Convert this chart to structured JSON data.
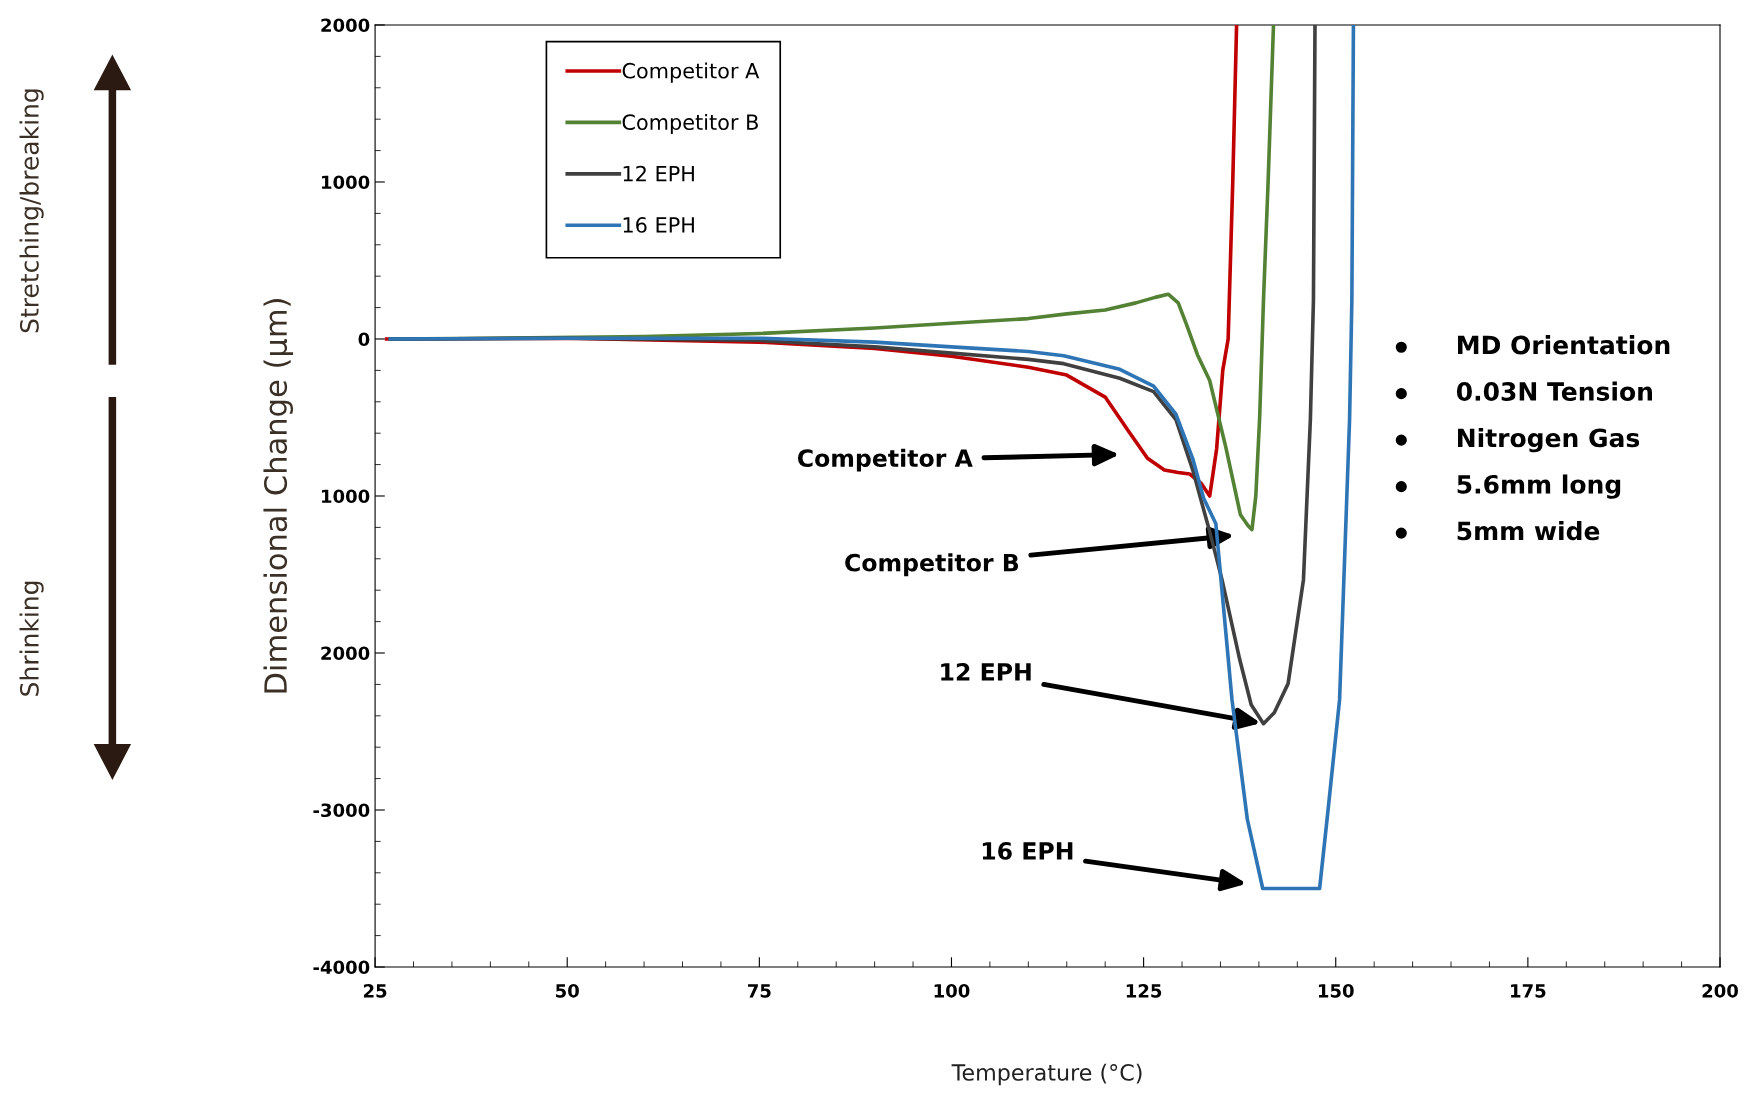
{
  "chart_data": {
    "type": "line",
    "xlabel": "Temperature (°C)",
    "ylabel": "Dimensional Change (µm)",
    "xlim": [
      25,
      200
    ],
    "xticks": [
      25,
      50,
      75,
      100,
      125,
      150,
      175,
      200
    ],
    "ylim": [
      -4000,
      2000
    ],
    "yticks": [
      -4000,
      -3000,
      {
        "value": -2000,
        "label": "2000"
      },
      {
        "value": -1000,
        "label": "1000"
      },
      0,
      1000,
      2000
    ],
    "grid": false,
    "legend": "top left",
    "line_style": "solid",
    "marker": "none",
    "series": [
      {
        "name": "Competitor A",
        "color": "#c00000",
        "x": [
          26.5,
          30,
          50,
          75,
          90,
          100,
          110,
          115,
          120,
          123,
          125.5,
          127.7,
          129.5,
          131,
          132.5,
          133.6,
          134.5,
          135.3,
          136,
          136.6,
          137.1
        ],
        "values": [
          0,
          0,
          5,
          -20,
          -60,
          -110,
          -180,
          -230,
          -370,
          -585,
          -760,
          -835,
          -850,
          -860,
          -920,
          -1000,
          -700,
          -200,
          0,
          1000,
          2000
        ]
      },
      {
        "name": "Competitor B",
        "color": "#548235",
        "x": [
          27,
          40,
          60,
          75,
          90,
          100,
          110,
          115,
          120,
          124,
          126.5,
          128.2,
          129.5,
          130.6,
          132,
          133.6,
          135.7,
          137.6,
          138.6,
          139.1,
          139.6,
          140.1,
          140.6,
          141.2,
          141.9
        ],
        "values": [
          0,
          5,
          15,
          35,
          70,
          100,
          130,
          160,
          185,
          230,
          265,
          285,
          230,
          90,
          -100,
          -265,
          -690,
          -1120,
          -1190,
          -1214,
          -1000,
          -500,
          250,
          1000,
          2000
        ]
      },
      {
        "name": "12 EPH",
        "color": "#404040",
        "x": [
          27,
          50,
          75,
          90,
          100,
          110,
          114.6,
          121.9,
          126.3,
          129.2,
          131.4,
          133.6,
          135.2,
          137.5,
          139,
          140.6,
          142,
          143.8,
          145.8,
          146.7,
          147.1,
          147.3
        ],
        "values": [
          0,
          5,
          -10,
          -50,
          -90,
          -130,
          -157,
          -250,
          -335,
          -513,
          -835,
          -1227,
          -1533,
          -2040,
          -2330,
          -2450,
          -2380,
          -2195,
          -1533,
          -513,
          250,
          2000
        ]
      },
      {
        "name": "16 EPH",
        "color": "#2e75b6",
        "x": [
          27,
          50,
          75,
          90,
          100,
          110,
          114.6,
          121.9,
          126.3,
          129.2,
          131.4,
          132.8,
          134.4,
          136.5,
          138.5,
          140.5,
          147.9,
          149,
          150.5,
          151.8,
          152.1,
          152.3
        ],
        "values": [
          0,
          5,
          5,
          -20,
          -50,
          -80,
          -107,
          -193,
          -300,
          -478,
          -763,
          -1013,
          -1177,
          -2297,
          -3060,
          -3500,
          -3500,
          -3000,
          -2297,
          -513,
          250,
          2000
        ]
      }
    ],
    "annotations": [
      "Competitor A",
      "Competitor B",
      {
        "text": "12 EPH",
        "x": 140.6,
        "y": -2450
      },
      "16 EPH",
      "MD Orientation",
      "0.03N Tension",
      "Nitrogen Gas",
      "5.6mm long",
      "5mm wide",
      "Stretching/breaking",
      "Shrinking"
    ]
  }
}
